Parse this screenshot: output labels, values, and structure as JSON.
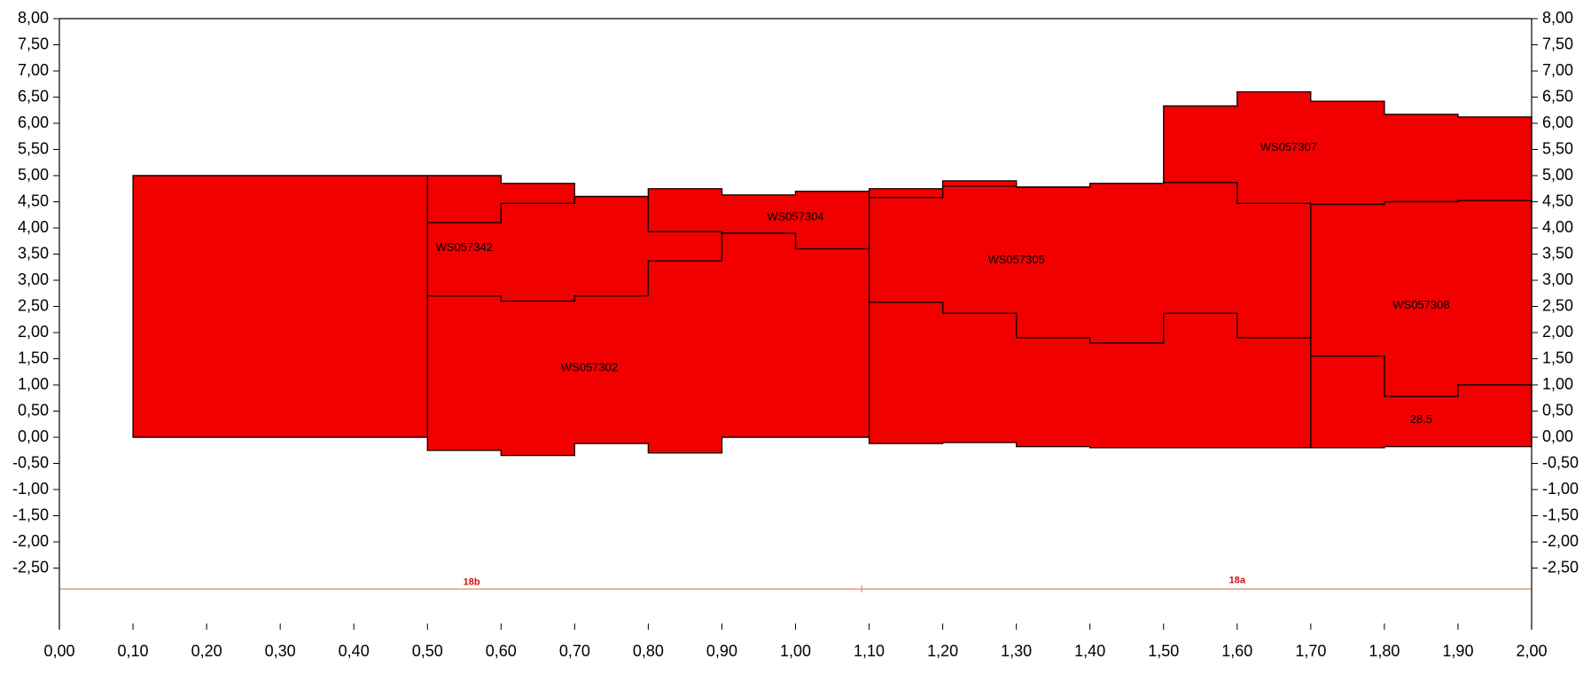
{
  "chart_data": {
    "type": "area",
    "title": "",
    "xlabel": "",
    "ylabel": "",
    "xlim": [
      0.0,
      2.0
    ],
    "ylim": [
      -3.0,
      8.0
    ],
    "x_ticks": [
      "0,00",
      "0,10",
      "0,20",
      "0,30",
      "0,40",
      "0,50",
      "0,60",
      "0,70",
      "0,80",
      "0,90",
      "1,00",
      "1,10",
      "1,20",
      "1,30",
      "1,40",
      "1,50",
      "1,60",
      "1,70",
      "1,80",
      "1,90",
      "2,00"
    ],
    "y_ticks": [
      "-2,50",
      "-2,00",
      "-1,50",
      "-1,00",
      "-0,50",
      "0,00",
      "0,50",
      "1,00",
      "1,50",
      "2,00",
      "2,50",
      "3,00",
      "3,50",
      "4,00",
      "4,50",
      "5,00",
      "5,50",
      "6,00",
      "6,50",
      "7,00",
      "7,50",
      "8,00"
    ],
    "grid": false,
    "fill_color": "#f20000",
    "edge_color": "#1a0000",
    "regions": [
      {
        "name": "",
        "x": [
          0.1,
          0.5
        ],
        "top": [
          5.0
        ],
        "bottom": [
          0.0
        ]
      },
      {
        "name": "",
        "x": [
          0.5,
          0.6,
          0.7
        ],
        "top": [
          5.0,
          4.85
        ],
        "bottom": [
          4.1,
          4.47
        ]
      },
      {
        "name": "WS057342",
        "x": [
          0.5,
          0.6,
          0.7,
          0.8,
          0.9,
          1.0,
          1.1
        ],
        "top": [
          4.1,
          4.47,
          4.6,
          3.93,
          3.9,
          3.6
        ],
        "bottom": [
          2.7,
          2.6,
          2.7,
          3.37,
          3.9,
          3.6
        ]
      },
      {
        "name": "WS057304",
        "x": [
          0.7,
          0.8,
          0.9,
          1.0,
          1.1
        ],
        "top": [
          4.6,
          4.75,
          4.63,
          4.7
        ],
        "bottom": [
          4.6,
          3.93,
          3.9,
          3.6
        ]
      },
      {
        "name": "WS057302",
        "x": [
          0.5,
          0.6,
          0.7,
          0.8,
          0.9,
          1.0,
          1.1
        ],
        "top": [
          2.7,
          2.6,
          2.7,
          3.37,
          3.9,
          3.6
        ],
        "bottom": [
          -0.25,
          -0.35,
          -0.12,
          -0.3,
          0.0,
          0.0
        ]
      },
      {
        "name": "WS057305",
        "x": [
          1.1,
          1.2,
          1.3,
          1.4,
          1.5,
          1.6,
          1.7
        ],
        "top": [
          4.58,
          4.8,
          4.78,
          4.85,
          4.87,
          4.47
        ],
        "bottom": [
          2.58,
          2.37,
          1.9,
          1.8,
          2.37,
          1.9
        ]
      },
      {
        "name": "",
        "x": [
          1.1,
          1.2,
          1.3,
          1.4,
          1.5
        ],
        "top": [
          4.75,
          4.9,
          4.78,
          4.85
        ],
        "bottom": [
          4.58,
          4.8,
          4.78,
          4.85
        ]
      },
      {
        "name": "WS057307",
        "x": [
          1.5,
          1.6,
          1.7,
          1.8,
          1.9,
          2.0
        ],
        "top": [
          6.33,
          6.6,
          6.42,
          6.17,
          6.12
        ],
        "bottom": [
          4.87,
          4.47,
          4.45,
          4.5,
          4.52
        ]
      },
      {
        "name": "",
        "x": [
          1.1,
          1.2,
          1.3,
          1.4,
          1.5,
          1.6,
          1.7
        ],
        "top": [
          2.58,
          2.37,
          1.9,
          1.8,
          2.37,
          1.9
        ],
        "bottom": [
          -0.12,
          -0.1,
          -0.18,
          -0.2,
          -0.2,
          -0.2
        ]
      },
      {
        "name": "WS057308",
        "x": [
          1.7,
          1.8,
          1.9,
          2.0
        ],
        "top": [
          4.45,
          4.5,
          4.52
        ],
        "bottom": [
          1.55,
          0.78,
          1.0
        ]
      },
      {
        "name": "28.5",
        "x": [
          1.7,
          1.8,
          1.9,
          2.0
        ],
        "top": [
          1.55,
          0.78,
          1.0
        ],
        "bottom": [
          -0.2,
          -0.18,
          -0.18
        ]
      }
    ],
    "region_labels": [
      {
        "text": "WS057342",
        "x": 0.55,
        "y": 3.62
      },
      {
        "text": "WS057304",
        "x": 1.0,
        "y": 4.2
      },
      {
        "text": "WS057302",
        "x": 0.72,
        "y": 1.32
      },
      {
        "text": "WS057305",
        "x": 1.3,
        "y": 3.38
      },
      {
        "text": "WS057307",
        "x": 1.67,
        "y": 5.53
      },
      {
        "text": "WS057308",
        "x": 1.85,
        "y": 2.52
      },
      {
        "text": "28.5",
        "x": 1.85,
        "y": 0.33
      }
    ],
    "baseline": {
      "y": -2.9,
      "color": "#e08a5c",
      "tick_x": 1.09
    },
    "markers": [
      {
        "text": "18b",
        "x": 0.56,
        "y": -2.82,
        "color": "#d01010"
      },
      {
        "text": "18a",
        "x": 1.6,
        "y": -2.79,
        "color": "#d01010"
      }
    ]
  }
}
